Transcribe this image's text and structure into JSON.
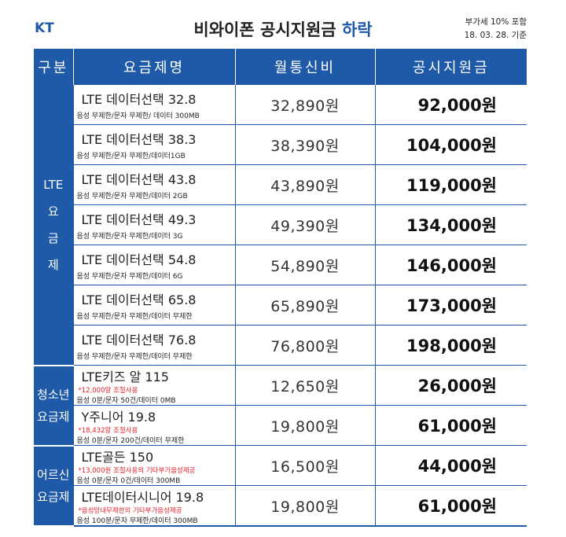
{
  "header": {
    "brand": "KT",
    "title": "비와이폰 공시지원금",
    "title_highlight": "하락",
    "note_vat": "부가세 10% 포함",
    "note_date": "18. 03. 28.  기준"
  },
  "columns": [
    "구분",
    "요금제명",
    "월통신비",
    "공시지원금"
  ],
  "groups": [
    {
      "label": "LTE\n요\n금\n제"
    },
    {
      "label": "청소년\n요금제"
    },
    {
      "label": "어르신\n요금제"
    }
  ],
  "rows": [
    {
      "name": "LTE 데이터선택 32.8",
      "note": "",
      "desc": "음성 무제한/문자 무제한/ 데이터 300MB",
      "fee": "32,890원",
      "subsidy": "92,000원"
    },
    {
      "name": "LTE 데이터선택 38.3",
      "note": "",
      "desc": "음성 무제한/문자 무제한/데이터1GB",
      "fee": "38,390원",
      "subsidy": "104,000원"
    },
    {
      "name": "LTE 데이터선택 43.8",
      "note": "",
      "desc": "음성 무제한/문자 무제한/데이터 2GB",
      "fee": "43,890원",
      "subsidy": "119,000원"
    },
    {
      "name": "LTE 데이터선택 49.3",
      "note": "",
      "desc": "음성 무제한/문자 무제한/데이터 3G",
      "fee": "49,390원",
      "subsidy": "134,000원"
    },
    {
      "name": "LTE 데이터선택 54.8",
      "note": "",
      "desc": "음성 무제한/문자 무제한/데이터 6G",
      "fee": "54,890원",
      "subsidy": "146,000원"
    },
    {
      "name": "LTE 데이터선택 65.8",
      "note": "",
      "desc": "음성 무제한/문자 무제한/데이터 무제한",
      "fee": "65,890원",
      "subsidy": "173,000원"
    },
    {
      "name": "LTE 데이터선택 76.8",
      "note": "",
      "desc": "음성 무제한/문자 무제한/데이터 무제한",
      "fee": "76,800원",
      "subsidy": "198,000원"
    },
    {
      "name": "LTE키즈 알 115",
      "note": "*12,000알 조절사용",
      "desc": "음성 0분/문자 50건/데이터 0MB",
      "fee": "12,650원",
      "subsidy": "26,000원"
    },
    {
      "name": "Y주니어 19.8",
      "note": "*18,432알 조절사용",
      "desc": "음성 0분/문자 200건/데이터 무제한",
      "fee": "19,800원",
      "subsidy": "61,000원"
    },
    {
      "name": "LTE골든 150",
      "note": "*13,000원 조절사용의 기타부가음성제공",
      "desc": "음성 0분/문자 0건/데이터 300MB",
      "fee": "16,500원",
      "subsidy": "44,000원"
    },
    {
      "name": "LTE데이터시니어 19.8",
      "note": "*음성망내무제한의 기타부가음성제공",
      "desc": "음성 100분/문자 무제한/데이터 300MB",
      "fee": "19,800원",
      "subsidy": "61,000원"
    }
  ],
  "colors": {
    "header_blue": "#1e5aa8",
    "note_red": "#e8222b"
  }
}
